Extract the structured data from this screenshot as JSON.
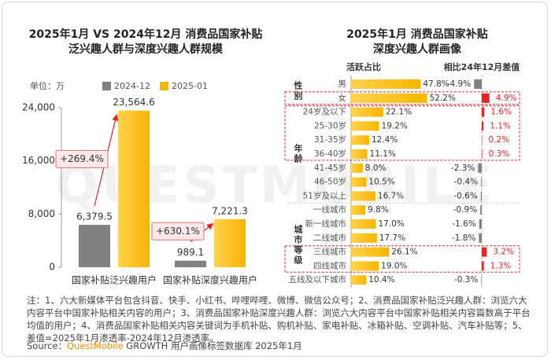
{
  "chart_data": [
    {
      "type": "bar",
      "title": [
        "2025年1月 VS 2024年12月 消费品国家补贴",
        "泛兴趣人群与深度兴趣人群规模"
      ],
      "unit_label": "单位：万",
      "categories": [
        "国家补贴泛兴趣用户",
        "国家补贴深度兴趣用户"
      ],
      "series": [
        {
          "name": "2024-12",
          "color": "#808080",
          "values": [
            6379.5,
            989.1
          ],
          "value_labels": [
            "6,379.5",
            "989.1"
          ]
        },
        {
          "name": "2025-01",
          "color": "#f7b500",
          "values": [
            23564.6,
            7221.3
          ],
          "value_labels": [
            "23,564.6",
            "7,221.3"
          ]
        }
      ],
      "ylim": [
        0,
        24000
      ],
      "yticks": [
        0,
        {
          "value": 8000,
          "label": "8,000"
        },
        {
          "value": 16000,
          "label": "16,000"
        },
        {
          "value": 24000,
          "label": "24,000"
        }
      ],
      "annotations": [
        "+269.4%",
        "+630.1%"
      ]
    },
    {
      "type": "hbar",
      "title": [
        "2025年1月 消费品国家补贴",
        "深度兴趣人群画像"
      ],
      "column_labels": [
        "活跃占比",
        "相比24年12月差值"
      ],
      "xlim": [
        0,
        60
      ],
      "difflim": [
        -6,
        6
      ],
      "color": "#f7b500",
      "positive_color": "#e0262b",
      "negative_color": "#808080",
      "groups": [
        {
          "name": "性别",
          "categories": [
            "男",
            "女"
          ],
          "values": [
            47.8,
            52.2
          ],
          "value_labels": [
            "47.8%",
            "52.2%"
          ],
          "diffs": [
            -4.9,
            4.9
          ],
          "diff_labels": [
            "-4.9%",
            "4.9%"
          ]
        },
        {
          "name": "年龄",
          "categories": [
            "24岁及以下",
            "25-30岁",
            "31-35岁",
            "36-40岁",
            "41-45岁",
            "46-50岁",
            "51岁及以上"
          ],
          "values": [
            22.1,
            19.2,
            12.4,
            11.1,
            8.0,
            10.5,
            16.7
          ],
          "value_labels": [
            "22.1%",
            "19.2%",
            "12.4%",
            "11.1%",
            "8.0%",
            "10.5%",
            "16.7%"
          ],
          "diffs": [
            1.6,
            1.1,
            0.2,
            0.3,
            -2.3,
            -0.4,
            -0.6
          ],
          "diff_labels": [
            "1.6%",
            "1.1%",
            "0.2%",
            "0.3%",
            "-2.3%",
            "-0.4%",
            "-0.6%"
          ]
        },
        {
          "name": "城市等级",
          "categories": [
            "一线城市",
            "新一线城市",
            "二线城市",
            "三线城市",
            "四线城市",
            "五线及以下城市"
          ],
          "values": [
            9.8,
            17.0,
            17.7,
            26.1,
            19.0,
            10.4
          ],
          "value_labels": [
            "9.8%",
            "17.0%",
            "17.7%",
            "26.1%",
            "19.0%",
            "10.4%"
          ],
          "diffs": [
            -0.9,
            -1.6,
            -1.8,
            3.2,
            1.3,
            -0.3
          ],
          "diff_labels": [
            "-0.9%",
            "-1.6%",
            "-1.8%",
            "3.2%",
            "1.3%",
            "-0.3%"
          ]
        }
      ]
    }
  ],
  "watermark": "QUESTMOBILE",
  "notes": "注：1、六大新媒体平台包含抖音、快手、小红书、哔哩哔哩、微博、微信公众号；2、消费品国家补贴泛兴趣人群：浏览六大内容平台中国家补贴相关内容的用户；3、消费品国家补贴深度兴趣人群：浏览六大内容平台中国家补贴相关内容篇数高于平台均值的用户；4、消费品国家补贴相关内容关键词为手机补贴、购机补贴、家电补贴、冰箱补贴、空调补贴、汽车补贴等；5、差值=2025年1月渗透率-2024年12月渗透率。",
  "source": {
    "prefix": "Source：",
    "brand": "QuestMobile",
    "text": " GROWTH 用户画像标签数据库 2025年1月"
  }
}
